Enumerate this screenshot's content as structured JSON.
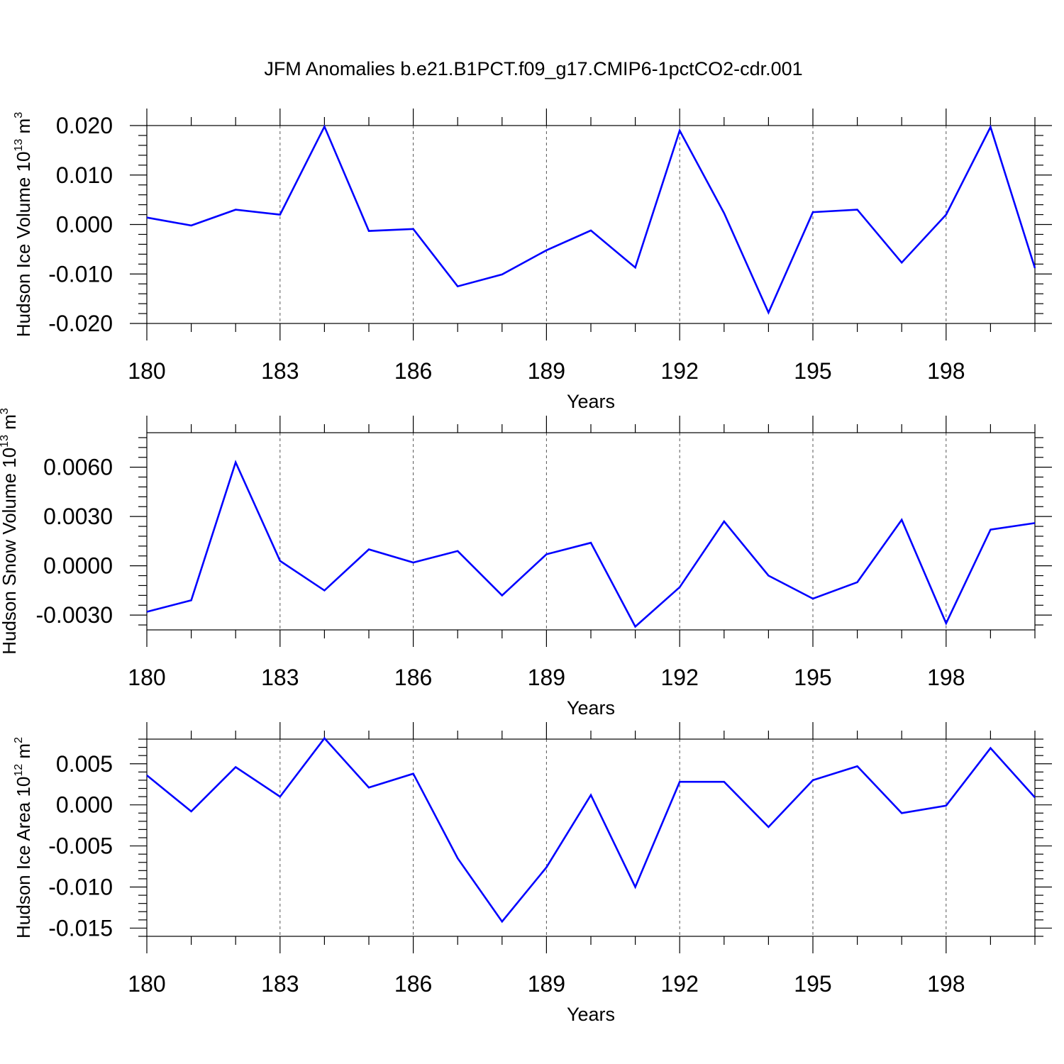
{
  "title": "JFM Anomalies b.e21.B1PCT.f09_g17.CMIP6-1pctCO2-cdr.001",
  "colors": {
    "series": "#0000ff",
    "grid": "#555555",
    "frame": "#000000"
  },
  "chart_data": [
    {
      "type": "line",
      "ylabel": "Hudson Ice Volume 10",
      "ylabel_exp": "13",
      "ylabel_unit": " m",
      "ylabel_unit_exp": "3",
      "xlabel": "Years",
      "xlim": [
        180,
        200
      ],
      "ylim": [
        -0.02,
        0.02
      ],
      "xticks": [
        180,
        183,
        186,
        189,
        192,
        195,
        198
      ],
      "xtick_labels": [
        "180",
        "183",
        "186",
        "189",
        "192",
        "195",
        "198"
      ],
      "yticks": [
        -0.02,
        -0.01,
        0.0,
        0.01,
        0.02
      ],
      "ytick_labels": [
        "-0.020",
        "-0.010",
        "0.000",
        "0.010",
        "0.020"
      ],
      "yminor_step": 0.002,
      "grid": "vertical-dashed",
      "x": [
        180,
        181,
        182,
        183,
        184,
        185,
        186,
        187,
        188,
        189,
        190,
        191,
        192,
        193,
        194,
        195,
        196,
        197,
        198,
        199,
        200
      ],
      "values": [
        0.0014,
        -0.0002,
        0.003,
        0.002,
        0.0198,
        -0.0013,
        -0.0009,
        -0.0125,
        -0.0101,
        -0.0052,
        -0.0012,
        -0.0087,
        0.019,
        0.0023,
        -0.0178,
        0.0025,
        0.003,
        -0.0077,
        0.002,
        0.0197,
        -0.0088
      ]
    },
    {
      "type": "line",
      "ylabel": "Hudson Snow Volume 10",
      "ylabel_exp": "13",
      "ylabel_unit": " m",
      "ylabel_unit_exp": "3",
      "xlabel": "Years",
      "xlim": [
        180,
        200
      ],
      "ylim": [
        -0.0039,
        0.0081
      ],
      "xticks": [
        180,
        183,
        186,
        189,
        192,
        195,
        198
      ],
      "xtick_labels": [
        "180",
        "183",
        "186",
        "189",
        "192",
        "195",
        "198"
      ],
      "yticks": [
        -0.003,
        0.0,
        0.003,
        0.006
      ],
      "ytick_labels": [
        "-0.0030",
        "0.0000",
        "0.0030",
        "0.0060"
      ],
      "yminor_step": 0.0006,
      "grid": "vertical-dashed",
      "x": [
        180,
        181,
        182,
        183,
        184,
        185,
        186,
        187,
        188,
        189,
        190,
        191,
        192,
        193,
        194,
        195,
        196,
        197,
        198,
        199,
        200
      ],
      "values": [
        -0.0028,
        -0.0021,
        0.0063,
        0.0003,
        -0.0015,
        0.001,
        0.0002,
        0.0009,
        -0.0018,
        0.0007,
        0.0014,
        -0.0037,
        -0.0013,
        0.0027,
        -0.0006,
        -0.002,
        -0.001,
        0.0028,
        -0.0035,
        0.0022,
        0.0026
      ]
    },
    {
      "type": "line",
      "ylabel": "Hudson Ice Area 10",
      "ylabel_exp": "12",
      "ylabel_unit": " m",
      "ylabel_unit_exp": "2",
      "xlabel": "Years",
      "xlim": [
        180,
        200
      ],
      "ylim": [
        -0.016,
        0.008
      ],
      "xticks": [
        180,
        183,
        186,
        189,
        192,
        195,
        198
      ],
      "xtick_labels": [
        "180",
        "183",
        "186",
        "189",
        "192",
        "195",
        "198"
      ],
      "yticks": [
        -0.015,
        -0.01,
        -0.005,
        0.0,
        0.005
      ],
      "ytick_labels": [
        "-0.015",
        "-0.010",
        "-0.005",
        "0.000",
        "0.005"
      ],
      "yminor_step": 0.001,
      "grid": "vertical-dashed",
      "x": [
        180,
        181,
        182,
        183,
        184,
        185,
        186,
        187,
        188,
        189,
        190,
        191,
        192,
        193,
        194,
        195,
        196,
        197,
        198,
        199,
        200
      ],
      "values": [
        0.0036,
        -0.0008,
        0.0046,
        0.001,
        0.0081,
        0.0021,
        0.0038,
        -0.0065,
        -0.0142,
        -0.0076,
        0.0012,
        -0.01,
        0.0028,
        0.0028,
        -0.0027,
        0.003,
        0.0047,
        -0.001,
        -0.0001,
        0.0069,
        0.0009
      ]
    }
  ]
}
